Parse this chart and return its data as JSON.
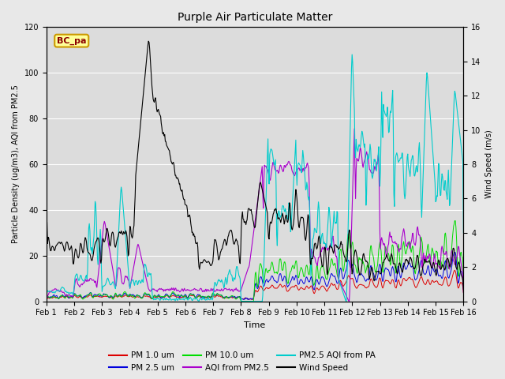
{
  "title": "Purple Air Particulate Matter",
  "xlabel": "Time",
  "ylabel_left": "Particle Density (ug/m3), AQI from PM2.5",
  "ylabel_right": "Wind Speed (m/s)",
  "location_label": "BC_pa",
  "x_tick_labels": [
    "Feb 1",
    "Feb 2",
    "Feb 3",
    "Feb 4",
    "Feb 5",
    "Feb 6",
    "Feb 7",
    "Feb 8",
    "Feb 9",
    "Feb 10",
    "Feb 11",
    "Feb 12",
    "Feb 13",
    "Feb 14",
    "Feb 15",
    "Feb 16"
  ],
  "ylim_left": [
    0,
    120
  ],
  "ylim_right": [
    0,
    16
  ],
  "yticks_left": [
    0,
    20,
    40,
    60,
    80,
    100,
    120
  ],
  "yticks_right": [
    0,
    2,
    4,
    6,
    8,
    10,
    12,
    14,
    16
  ],
  "colors": {
    "pm1": "#dd0000",
    "pm25": "#0000dd",
    "pm10": "#00dd00",
    "aqi_pm25": "#aa00cc",
    "aqi_pa": "#00cccc",
    "wind": "#000000"
  },
  "bg_color": "#e8e8e8",
  "plot_bg": "#dcdcdc",
  "n_points": 720,
  "figsize": [
    6.4,
    4.8
  ],
  "dpi": 100
}
